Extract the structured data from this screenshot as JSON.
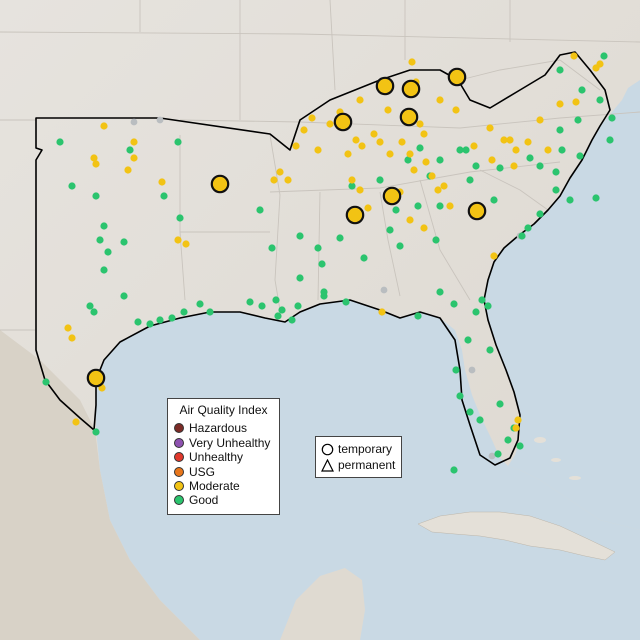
{
  "legend": {
    "title": "Air Quality Index",
    "categories": [
      {
        "label": "Hazardous",
        "color": "#7b2b26"
      },
      {
        "label": "Very Unhealthy",
        "color": "#8e52b0"
      },
      {
        "label": "Unhealthy",
        "color": "#e0382c"
      },
      {
        "label": "USG",
        "color": "#e8761b"
      },
      {
        "label": "Moderate",
        "color": "#f2c314"
      },
      {
        "label": "Good",
        "color": "#2bc46e"
      }
    ]
  },
  "monitor_types": [
    {
      "label": "temporary",
      "icon": "circle-icon"
    },
    {
      "label": "permanent",
      "icon": "triangle-icon"
    }
  ],
  "colors": {
    "water": "#c9d9e4",
    "land": "#e9e6e1",
    "no_data": "#b9bdc0",
    "outline": "#000000"
  }
}
